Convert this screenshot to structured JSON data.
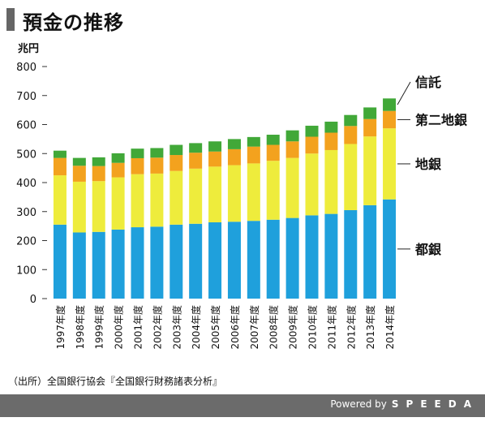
{
  "header": {
    "title": "預金の推移"
  },
  "chart_data": {
    "type": "bar",
    "stacked": true,
    "ylabel": "兆円",
    "ylim": [
      0,
      800
    ],
    "yticks": [
      0,
      100,
      200,
      300,
      400,
      500,
      600,
      700,
      800
    ],
    "categories": [
      "1997年度",
      "1998年度",
      "1999年度",
      "2000年度",
      "2001年度",
      "2002年度",
      "2003年度",
      "2004年度",
      "2005年度",
      "2006年度",
      "2007年度",
      "2008年度",
      "2009年度",
      "2010年度",
      "2011年度",
      "2012年度",
      "2013年度",
      "2014年度"
    ],
    "series": [
      {
        "name": "都銀",
        "color": "#1fa0dc",
        "values": [
          255,
          228,
          230,
          238,
          246,
          248,
          255,
          258,
          263,
          265,
          268,
          272,
          278,
          287,
          292,
          305,
          322,
          342
        ]
      },
      {
        "name": "地銀",
        "color": "#eeec3c",
        "values": [
          170,
          175,
          175,
          180,
          183,
          183,
          185,
          190,
          192,
          195,
          198,
          203,
          207,
          213,
          220,
          228,
          237,
          245
        ]
      },
      {
        "name": "第二地銀",
        "color": "#f3a21e",
        "values": [
          60,
          55,
          52,
          50,
          55,
          55,
          55,
          55,
          52,
          55,
          58,
          55,
          57,
          58,
          60,
          62,
          60,
          60
        ]
      },
      {
        "name": "信託",
        "color": "#41a838",
        "values": [
          25,
          27,
          30,
          33,
          33,
          33,
          35,
          33,
          35,
          35,
          33,
          35,
          38,
          38,
          38,
          38,
          40,
          43
        ]
      }
    ],
    "grid": false,
    "legend": "right"
  },
  "source": "（出所）全国銀行協会『全国銀行財務諸表分析』",
  "footer": {
    "powered_by": "Powered by",
    "brand": "SPEEDA"
  }
}
